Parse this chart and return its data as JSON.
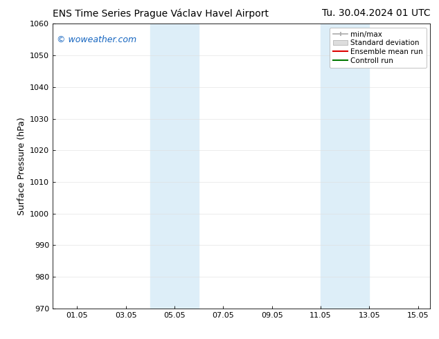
{
  "title_left": "ENS Time Series Prague Václav Havel Airport",
  "title_right": "Tu. 30.04.2024 01 UTC",
  "ylabel": "Surface Pressure (hPa)",
  "ylim": [
    970,
    1060
  ],
  "yticks": [
    970,
    980,
    990,
    1000,
    1010,
    1020,
    1030,
    1040,
    1050,
    1060
  ],
  "xlim": [
    0.0,
    15.5
  ],
  "xtick_labels": [
    "01.05",
    "03.05",
    "05.05",
    "07.05",
    "09.05",
    "11.05",
    "13.05",
    "15.05"
  ],
  "xtick_positions": [
    1,
    3,
    5,
    7,
    9,
    11,
    13,
    15
  ],
  "shaded_bands": [
    {
      "x_start": 4.0,
      "x_end": 6.0,
      "color": "#ddeef8"
    },
    {
      "x_start": 11.0,
      "x_end": 13.0,
      "color": "#ddeef8"
    }
  ],
  "watermark": "© woweather.com",
  "watermark_color": "#1565c0",
  "watermark_fontsize": 9,
  "legend_labels": [
    "min/max",
    "Standard deviation",
    "Ensemble mean run",
    "Controll run"
  ],
  "legend_colors_line": [
    "#aaaaaa",
    "#cccccc",
    "#dd0000",
    "#007700"
  ],
  "background_color": "#ffffff",
  "plot_bg_color": "#ffffff",
  "title_fontsize": 10,
  "tick_fontsize": 8,
  "label_fontsize": 9
}
